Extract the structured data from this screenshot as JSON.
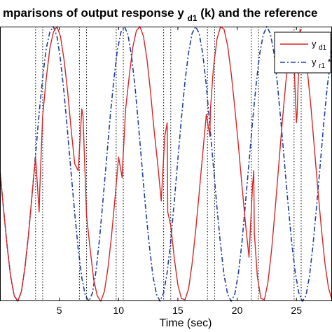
{
  "chart_data": {
    "type": "line",
    "title": "mparisons of output response y",
    "title_subscript": "d1",
    "title_suffix": "(k) and the reference",
    "xlabel": "Time (sec)",
    "ylabel": "",
    "xlim": [
      0,
      28
    ],
    "ylim": [
      -1,
      1
    ],
    "xticks": [
      5,
      10,
      15,
      20,
      25
    ],
    "xtick_labels": [
      "5",
      "10",
      "15",
      "20",
      "25"
    ],
    "grid": false,
    "legend_position": "top-right",
    "vlines": [
      3.0,
      3.6,
      6.7,
      7.3,
      9.8,
      10.4,
      13.8,
      14.4,
      17.5,
      18.1,
      21.2,
      21.8,
      24.8,
      25.4
    ],
    "colors": {
      "y_d1": "#d62728",
      "y_r1": "#1f3f9f",
      "vline": "#000000"
    },
    "series": [
      {
        "name": "y",
        "subscript": "d1",
        "style": "solid",
        "x": [
          0.0,
          0.3,
          0.6,
          0.9,
          1.2,
          1.5,
          1.8,
          2.1,
          2.4,
          2.7,
          3.0,
          3.3,
          3.35,
          3.6,
          3.9,
          4.2,
          4.5,
          4.8,
          5.1,
          5.4,
          5.7,
          6.0,
          6.3,
          6.6,
          6.9,
          7.0,
          7.3,
          7.6,
          7.9,
          8.2,
          8.5,
          8.8,
          9.1,
          9.4,
          9.7,
          10.0,
          10.3,
          10.35,
          10.6,
          10.9,
          11.2,
          11.5,
          11.8,
          12.1,
          12.4,
          12.7,
          13.0,
          13.3,
          13.6,
          13.9,
          14.1,
          14.15,
          14.4,
          14.7,
          15.0,
          15.3,
          15.6,
          15.9,
          16.2,
          16.5,
          16.8,
          17.1,
          17.4,
          17.7,
          17.75,
          18.0,
          18.3,
          18.6,
          18.9,
          19.2,
          19.5,
          19.8,
          20.1,
          20.4,
          20.7,
          21.0,
          21.3,
          21.4,
          21.45,
          21.7,
          22.0,
          22.3,
          22.6,
          22.9,
          23.2,
          23.5,
          23.8,
          24.1,
          24.4,
          24.7,
          25.0,
          25.05,
          25.3,
          25.6,
          25.9,
          26.2,
          26.5,
          26.8,
          27.1,
          27.4,
          27.7,
          28.0
        ],
        "y": [
          -0.05,
          -0.33,
          -0.6,
          -0.82,
          -0.96,
          -1.0,
          -0.93,
          -0.76,
          -0.52,
          -0.23,
          0.05,
          -0.35,
          -0.2,
          0.35,
          0.62,
          0.84,
          0.96,
          1.0,
          0.93,
          0.76,
          0.53,
          0.25,
          0.0,
          -0.05,
          0.4,
          0.35,
          -0.38,
          -0.62,
          -0.84,
          -0.96,
          -1.0,
          -0.93,
          -0.76,
          -0.53,
          -0.25,
          0.05,
          -0.1,
          0.0,
          0.4,
          0.64,
          0.85,
          0.97,
          1.0,
          0.93,
          0.76,
          0.52,
          0.24,
          0.0,
          -0.27,
          0.2,
          0.3,
          -0.35,
          -0.45,
          -0.69,
          -0.88,
          -0.98,
          -0.99,
          -0.91,
          -0.73,
          -0.49,
          -0.21,
          0.08,
          0.36,
          0.2,
          0.4,
          0.7,
          0.91,
          1.0,
          0.98,
          0.86,
          0.66,
          0.41,
          0.14,
          -0.15,
          -0.43,
          -0.68,
          -0.15,
          -0.05,
          -0.5,
          -0.82,
          -0.98,
          -0.99,
          -0.86,
          -0.63,
          -0.34,
          -0.02,
          0.3,
          0.59,
          0.82,
          0.96,
          0.3,
          0.35,
          0.98,
          0.88,
          0.7,
          0.44,
          0.13,
          -0.18,
          -0.47,
          -0.72,
          -0.9,
          -0.99
        ]
      },
      {
        "name": "y",
        "subscript": "r1",
        "name_suffix": "*",
        "style": "dashdot",
        "x": [
          0.0,
          0.3,
          0.6,
          0.9,
          1.2,
          1.5,
          1.8,
          2.1,
          2.4,
          2.7,
          3.0,
          3.3,
          3.6,
          3.9,
          4.2,
          4.5,
          4.8,
          5.1,
          5.4,
          5.7,
          6.0,
          6.3,
          6.6,
          6.9,
          7.2,
          7.5,
          7.8,
          8.1,
          8.4,
          8.7,
          9.0,
          9.3,
          9.6,
          9.9,
          10.2,
          10.5,
          10.8,
          11.1,
          11.4,
          11.7,
          12.0,
          12.3,
          12.6,
          12.9,
          13.2,
          13.5,
          13.8,
          14.1,
          14.4,
          14.7,
          15.0,
          15.3,
          15.6,
          15.9,
          16.2,
          16.5,
          16.8,
          17.1,
          17.4,
          17.7,
          18.0,
          18.3,
          18.6,
          18.9,
          19.2,
          19.5,
          19.8,
          20.1,
          20.4,
          20.7,
          21.0,
          21.3,
          21.6,
          21.9,
          22.2,
          22.5,
          22.8,
          23.1,
          23.4,
          23.7,
          24.0,
          24.3,
          24.6,
          24.9,
          25.2,
          25.5,
          25.8,
          26.1,
          26.4,
          26.7,
          27.0,
          27.3,
          27.6,
          28.0
        ],
        "y": [
          -0.05,
          -0.33,
          -0.6,
          -0.82,
          -0.96,
          -1.0,
          -0.93,
          -0.76,
          -0.52,
          -0.23,
          0.07,
          0.37,
          0.63,
          0.84,
          0.96,
          1.0,
          0.93,
          0.76,
          0.52,
          0.23,
          -0.07,
          -0.36,
          -0.62,
          -0.83,
          -0.96,
          -1.0,
          -0.94,
          -0.78,
          -0.54,
          -0.25,
          0.05,
          0.35,
          0.61,
          0.83,
          0.96,
          1.0,
          0.94,
          0.78,
          0.55,
          0.26,
          -0.04,
          -0.34,
          -0.6,
          -0.82,
          -0.95,
          -1.0,
          -0.94,
          -0.79,
          -0.56,
          -0.27,
          0.03,
          0.33,
          0.6,
          0.81,
          0.95,
          1.0,
          0.95,
          0.8,
          0.57,
          0.28,
          -0.02,
          -0.32,
          -0.59,
          -0.81,
          -0.95,
          -1.0,
          -0.95,
          -0.8,
          -0.58,
          -0.29,
          0.01,
          0.31,
          0.58,
          0.8,
          0.94,
          1.0,
          0.95,
          0.81,
          0.58,
          0.3,
          0.0,
          -0.3,
          -0.57,
          -0.79,
          -0.94,
          -1.0,
          -0.96,
          -0.82,
          -0.59,
          -0.31,
          -0.01,
          0.29,
          0.56,
          0.84
        ]
      }
    ]
  }
}
